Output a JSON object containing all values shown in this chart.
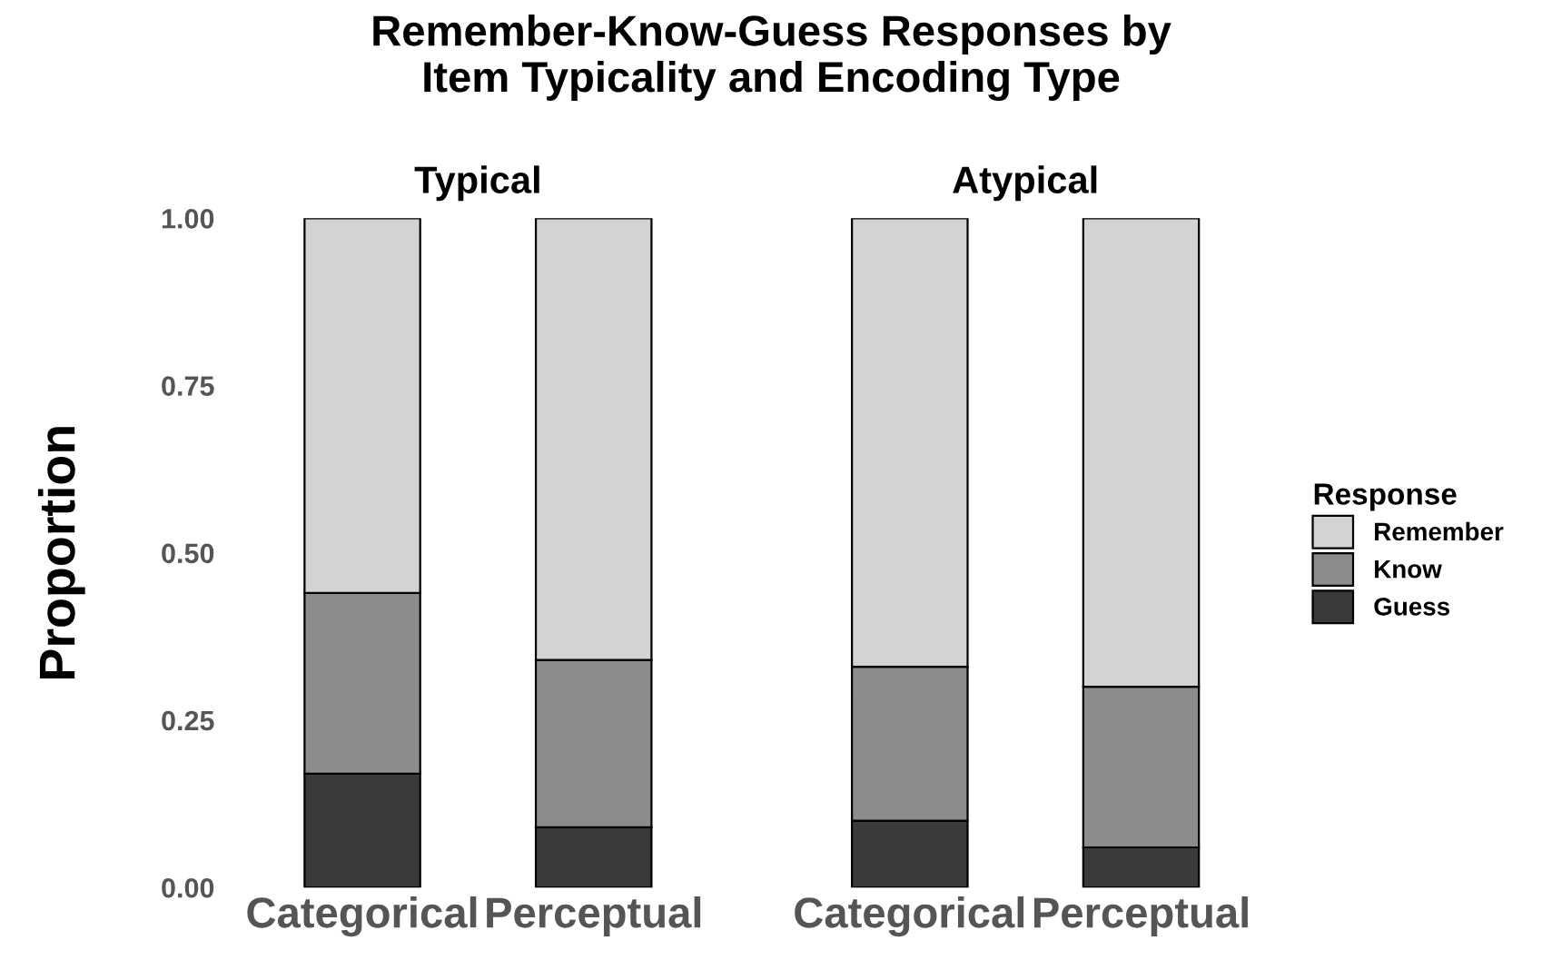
{
  "chart_data": [
    {
      "type": "bar",
      "stacked": true,
      "title": "Typical",
      "annotations": [
        "Remember-Know-Guess Responses by\nItem Typicality and Encoding Type"
      ],
      "ylabel": "Proportion",
      "categories": [
        "Categorical",
        "Perceptual"
      ],
      "ylim": [
        0,
        1
      ],
      "yticks": [
        {
          "value": 0,
          "label": "0.00"
        },
        {
          "value": 0.25,
          "label": "0.25"
        },
        {
          "value": 0.5,
          "label": "0.50"
        },
        {
          "value": 0.75,
          "label": "0.75"
        },
        {
          "value": 1,
          "label": "1.00"
        }
      ],
      "grid": false,
      "series": [
        {
          "color": "#3a3a3a",
          "values": [
            0.17,
            0.09
          ]
        },
        {
          "color": "#8c8c8c",
          "values": [
            0.27,
            0.25
          ]
        },
        {
          "color": "#d3d3d3",
          "values": [
            0.56,
            0.66
          ]
        }
      ]
    },
    {
      "type": "bar",
      "stacked": true,
      "title": "Atypical",
      "categories": [
        "Categorical",
        "Perceptual"
      ],
      "ylim": [
        0,
        1
      ],
      "tick_labels": "x",
      "grid": false,
      "legend": "right",
      "legend_title": "Response",
      "series": [
        {
          "name": "Guess",
          "color": "#3a3a3a",
          "values": [
            0.1,
            0.06
          ]
        },
        {
          "name": "Know",
          "color": "#8c8c8c",
          "values": [
            0.23,
            0.24
          ]
        },
        {
          "name": "Remember",
          "color": "#d3d3d3",
          "values": [
            0.67,
            0.7
          ]
        }
      ]
    }
  ]
}
